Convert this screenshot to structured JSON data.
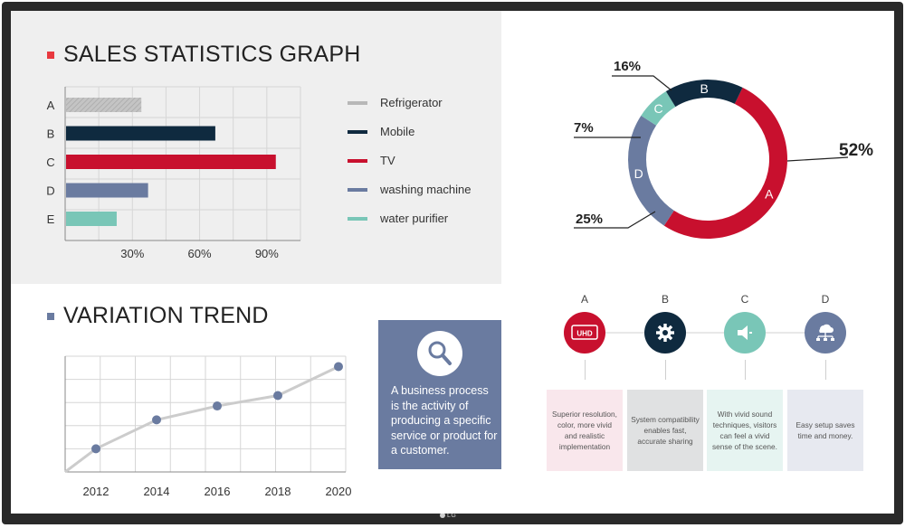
{
  "sales": {
    "title": "SALES STATISTICS GRAPH",
    "marker_color": "#e8393f",
    "legend": [
      {
        "label": "Refrigerator",
        "color": "#b8b8b8"
      },
      {
        "label": "Mobile",
        "color": "#0f2a3f"
      },
      {
        "label": "TV",
        "color": "#c8102e"
      },
      {
        "label": "washing machine",
        "color": "#6a7ba0"
      },
      {
        "label": "water purifier",
        "color": "#79c6b7"
      }
    ]
  },
  "chart_data": [
    {
      "type": "bar",
      "orientation": "horizontal",
      "categories": [
        "A",
        "B",
        "C",
        "D",
        "E"
      ],
      "values": [
        34,
        67,
        94,
        37,
        23
      ],
      "colors": [
        "#b8b8b8",
        "#0f2a3f",
        "#c8102e",
        "#6a7ba0",
        "#79c6b7"
      ],
      "x_ticks": [
        "30%",
        "60%",
        "90%"
      ],
      "x_tick_values": [
        30,
        60,
        90
      ],
      "xlim": [
        0,
        105
      ],
      "grid": true
    },
    {
      "type": "pie",
      "style": "donut",
      "slices": [
        {
          "label": "A",
          "value": 52,
          "display": "52%",
          "color": "#c8102e"
        },
        {
          "label": "D",
          "value": 25,
          "display": "25%",
          "color": "#6a7ba0"
        },
        {
          "label": "C",
          "value": 7,
          "display": "7%",
          "color": "#79c6b7"
        },
        {
          "label": "B",
          "value": 16,
          "display": "16%",
          "color": "#0f2a3f"
        }
      ]
    },
    {
      "type": "line",
      "title": "VARIATION TREND",
      "x": [
        "2012",
        "2014",
        "2016",
        "2018",
        "2020"
      ],
      "values": [
        20,
        45,
        57,
        66,
        91
      ],
      "ylim": [
        0,
        100
      ],
      "line_color": "#cccccc",
      "point_color": "#6a7ba0",
      "grid": true
    }
  ],
  "trend": {
    "title": "VARIATION TREND",
    "marker_color": "#6a7ba0"
  },
  "info_card": {
    "text": "A business process is the activity of producing a specific service or product for a customer.",
    "icon": "magnifier-icon"
  },
  "features": [
    {
      "letter": "A",
      "icon": "uhd-icon",
      "icon_text": "UHD",
      "color": "#c8102e",
      "box_color": "#f9e7ec",
      "text": "Superior resolution, color, more vivid and realistic implementation"
    },
    {
      "letter": "B",
      "icon": "gear-icon",
      "color": "#0f2a3f",
      "box_color": "#e0e1e2",
      "text": "System compatibility enables fast, accurate sharing"
    },
    {
      "letter": "C",
      "icon": "speaker-icon",
      "color": "#79c6b7",
      "box_color": "#e6f4f1",
      "text": "With vivid sound techniques, visitors can feel a vivid sense of the scene."
    },
    {
      "letter": "D",
      "icon": "network-icon",
      "color": "#6a7ba0",
      "box_color": "#e7e9f0",
      "text": "Easy setup saves time and money."
    }
  ],
  "device": {
    "logo": "LG"
  }
}
